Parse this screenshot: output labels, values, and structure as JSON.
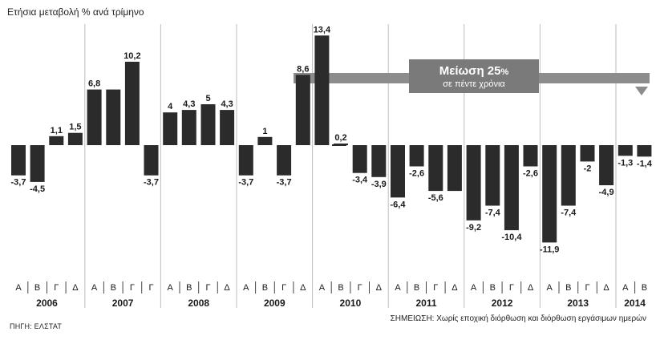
{
  "header": {
    "subtitle": "Ετήσια μεταβολή % ανά τρίμηνο"
  },
  "footer": {
    "source": "ΠΗΓΗ: ΕΛΣΤΑΤ",
    "note": "ΣΗΜΕΙΩΣΗ: Χωρίς εποχική διόρθωση και διόρθωση εργάσιμων ημερών"
  },
  "annotation": {
    "title": "Μείωση 25",
    "title_suffix": "%",
    "subtitle": "σε πέντε χρόνια"
  },
  "colors": {
    "bar": "#2b2b2b",
    "annotation_band": "#8c8c8c",
    "annotation_box": "#7a7a7a",
    "divider": "#bdbdbd"
  },
  "chart_data": {
    "type": "bar",
    "years": [
      {
        "year": "2006",
        "quarters": [
          "Α",
          "Β",
          "Γ",
          "Δ"
        ],
        "values": [
          -3.7,
          -4.5,
          1.1,
          1.5
        ],
        "labels": [
          "-3,7",
          "-4,5",
          "1,1",
          "1,5"
        ]
      },
      {
        "year": "2007",
        "quarters": [
          "Α",
          "Β",
          "Γ",
          "Γ"
        ],
        "values": [
          6.8,
          6.8,
          10.2,
          -3.7
        ],
        "labels": [
          "6,8",
          "",
          "10,2",
          "-3,7"
        ]
      },
      {
        "year": "2008",
        "quarters": [
          "Α",
          "Β",
          "Γ",
          "Δ"
        ],
        "values": [
          4,
          4.3,
          5,
          4.3
        ],
        "labels": [
          "4",
          "4,3",
          "5",
          "4,3"
        ]
      },
      {
        "year": "2009",
        "quarters": [
          "Α",
          "Β",
          "Γ",
          "Δ"
        ],
        "values": [
          -3.7,
          1,
          -3.7,
          8.6
        ],
        "labels": [
          "-3,7",
          "1",
          "-3,7",
          "8,6"
        ]
      },
      {
        "year": "2010",
        "quarters": [
          "Α",
          "Β",
          "Γ",
          "Δ"
        ],
        "values": [
          13.4,
          0.2,
          -3.4,
          -3.9
        ],
        "labels": [
          "13,4",
          "0,2",
          "-3,4",
          "-3,9"
        ]
      },
      {
        "year": "2011",
        "quarters": [
          "Α",
          "Β",
          "Γ",
          "Δ"
        ],
        "values": [
          -6.4,
          -2.6,
          -5.6,
          -5.6
        ],
        "labels": [
          "-6,4",
          "-2,6",
          "-5,6",
          ""
        ]
      },
      {
        "year": "2012",
        "quarters": [
          "Α",
          "Β",
          "Γ",
          "Δ"
        ],
        "values": [
          -9.2,
          -7.4,
          -10.4,
          -2.6
        ],
        "labels": [
          "-9,2",
          "-7,4",
          "-10,4",
          "-2,6"
        ]
      },
      {
        "year": "2013",
        "quarters": [
          "Α",
          "Β",
          "Γ",
          "Δ"
        ],
        "values": [
          -11.9,
          -7.4,
          -2,
          -4.9
        ],
        "labels": [
          "-11,9",
          "-7,4",
          "-2",
          "-4,9"
        ]
      },
      {
        "year": "2014",
        "quarters": [
          "Α",
          "Β"
        ],
        "values": [
          -1.3,
          -1.4
        ],
        "labels": [
          "-1,3",
          "-1,4"
        ]
      }
    ]
  }
}
